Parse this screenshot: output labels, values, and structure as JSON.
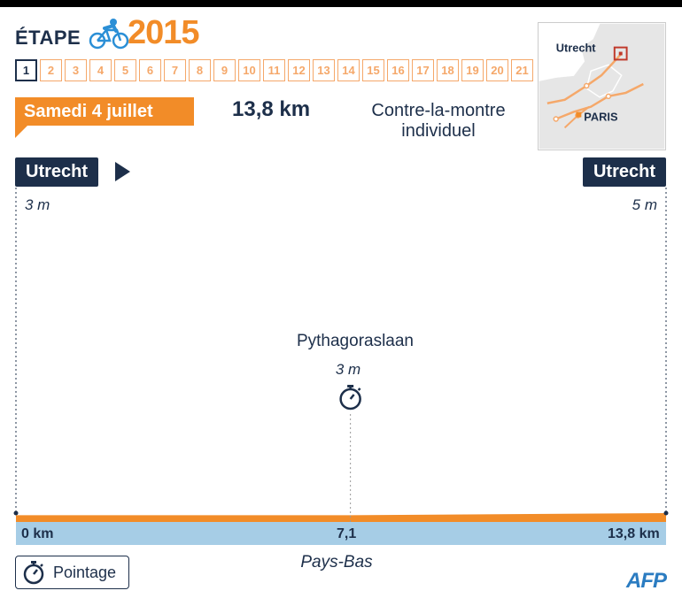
{
  "header": {
    "etape_label": "ÉTAPE",
    "year": "2015",
    "stages": [
      "1",
      "2",
      "3",
      "4",
      "5",
      "6",
      "7",
      "8",
      "9",
      "10",
      "11",
      "12",
      "13",
      "14",
      "15",
      "16",
      "17",
      "18",
      "19",
      "20",
      "21"
    ],
    "active_stage": "1"
  },
  "info": {
    "date": "Samedi 4 juillet",
    "distance": "13,8 km",
    "type_line1": "Contre-la-montre",
    "type_line2": "individuel"
  },
  "map": {
    "start_city": "Utrecht",
    "capital": "PARIS"
  },
  "chart_data": {
    "type": "area",
    "start": {
      "name": "Utrecht",
      "km": 0,
      "altitude_label": "3 m",
      "altitude": 3
    },
    "finish": {
      "name": "Utrecht",
      "km": 13.8,
      "altitude_label": "5 m",
      "altitude": 5
    },
    "checkpoints": [
      {
        "name": "Pythagoraslaan",
        "km": 7.1,
        "altitude_label": "3 m",
        "altitude": 3,
        "kind": "pointage"
      }
    ],
    "x": [
      0,
      7.1,
      13.8
    ],
    "y": [
      3,
      3,
      5
    ],
    "xlim": [
      0,
      13.8
    ],
    "tick_labels": [
      "0 km",
      "7,1",
      "13,8 km"
    ],
    "country": "Pays-Bas"
  },
  "legend": {
    "pointage": "Pointage"
  },
  "credit": "AFP",
  "colors": {
    "navy": "#1d2f4a",
    "orange": "#f28c28",
    "light_blue": "#a6cde6",
    "afp_blue": "#2b7cc1"
  },
  "icons": {
    "bike": "cyclist-icon",
    "checkpoint": "stopwatch-icon"
  }
}
